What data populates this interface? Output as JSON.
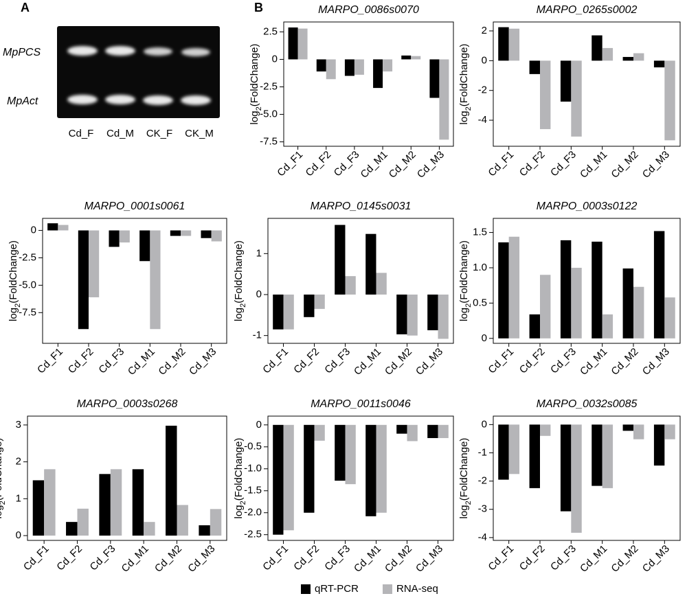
{
  "panel_a": {
    "label": "A",
    "genes": [
      "MpPCS",
      "MpAct"
    ],
    "lanes": [
      "Cd_F",
      "Cd_M",
      "CK_F",
      "CK_M"
    ]
  },
  "panel_b_label": "B",
  "chart_data": [
    {
      "type": "bar",
      "title": "MARPO_0086s0070",
      "ylabel": [
        "log",
        "2",
        "(FoldChange)"
      ],
      "categories": [
        "Cd_F1",
        "Cd_F2",
        "Cd_F3",
        "Cd_M1",
        "Cd_M2",
        "Cd_M3"
      ],
      "series": [
        {
          "color": "#000000",
          "values": [
            2.9,
            -1.1,
            -1.5,
            -2.6,
            0.35,
            -3.5
          ]
        },
        {
          "color": "#b5b5b8",
          "values": [
            2.8,
            -1.8,
            -1.4,
            -1.1,
            0.3,
            -7.3
          ]
        }
      ],
      "ylim": [
        -7.9,
        3.4
      ],
      "yticks": [
        2.5,
        0,
        -2.5,
        {
          "value": -5,
          "label": "-5.0"
        },
        -7.5
      ]
    },
    {
      "type": "bar",
      "title": "MARPO_0265s0002",
      "ylabel": [
        "log",
        "2",
        "(FoldChange)"
      ],
      "categories": [
        "Cd_F1",
        "Cd_F2",
        "Cd_F3",
        "Cd_M1",
        "Cd_M2",
        "Cd_M3"
      ],
      "series": [
        {
          "color": "#000000",
          "values": [
            2.25,
            -0.9,
            -2.75,
            1.7,
            0.25,
            -0.45
          ]
        },
        {
          "color": "#b5b5b8",
          "values": [
            2.15,
            -4.6,
            -5.1,
            0.85,
            0.5,
            -5.35
          ]
        }
      ],
      "ylim": [
        -5.75,
        2.6
      ],
      "yticks": [
        2,
        0,
        -2,
        -4
      ]
    },
    {
      "type": "bar",
      "title": "MARPO_0001s0061",
      "ylabel": [
        "log",
        "2",
        "(FoldChange)"
      ],
      "categories": [
        "Cd_F1",
        "Cd_F2",
        "Cd_F3",
        "Cd_M1",
        "Cd_M2",
        "Cd_M3"
      ],
      "series": [
        {
          "color": "#000000",
          "values": [
            0.65,
            -9.0,
            -1.5,
            -2.8,
            -0.5,
            -0.7
          ]
        },
        {
          "color": "#b5b5b8",
          "values": [
            0.5,
            -6.1,
            -1.1,
            -9.0,
            -0.5,
            -1.0
          ]
        }
      ],
      "ylim": [
        -10.3,
        1.1
      ],
      "yticks": [
        0,
        -2.5,
        {
          "value": -5,
          "label": "-5.0"
        },
        -7.5
      ]
    },
    {
      "type": "bar",
      "title": "MARPO_0145s0031",
      "ylabel": [
        "log",
        "2",
        "(FoldChange)"
      ],
      "categories": [
        "Cd_F1",
        "Cd_F2",
        "Cd_F3",
        "Cd_M1",
        "Cd_M2",
        "Cd_M3"
      ],
      "series": [
        {
          "color": "#000000",
          "values": [
            -0.85,
            -0.55,
            1.7,
            1.48,
            -0.97,
            -0.87
          ]
        },
        {
          "color": "#b5b5b8",
          "values": [
            -0.85,
            -0.35,
            0.45,
            0.53,
            -1.0,
            -1.08
          ]
        }
      ],
      "ylim": [
        -1.19,
        1.86
      ],
      "yticks": [
        1,
        0,
        -1
      ]
    },
    {
      "type": "bar",
      "title": "MARPO_0003s0122",
      "ylabel": [
        "log",
        "2",
        "(FoldChange)"
      ],
      "categories": [
        "Cd_F1",
        "Cd_F2",
        "Cd_F3",
        "Cd_M1",
        "Cd_M2",
        "Cd_M3"
      ],
      "series": [
        {
          "color": "#000000",
          "values": [
            1.36,
            0.34,
            1.39,
            1.37,
            0.99,
            1.52
          ]
        },
        {
          "color": "#b5b5b8",
          "values": [
            1.44,
            0.9,
            1.0,
            0.34,
            0.73,
            0.58
          ]
        }
      ],
      "ylim": [
        -0.07,
        1.7
      ],
      "yticks": [
        0,
        0.5,
        {
          "value": 1,
          "label": "1.0"
        },
        1.5
      ]
    },
    {
      "type": "bar",
      "title": "MARPO_0003s0268",
      "ylabel": [
        "log",
        "2",
        "(FoldChange)"
      ],
      "categories": [
        "Cd_F1",
        "Cd_F2",
        "Cd_F3",
        "Cd_M1",
        "Cd_M2",
        "Cd_M3"
      ],
      "series": [
        {
          "color": "#000000",
          "values": [
            1.5,
            0.37,
            1.67,
            1.8,
            2.98,
            0.28
          ]
        },
        {
          "color": "#b5b5b8",
          "values": [
            1.8,
            0.73,
            1.8,
            0.37,
            0.83,
            0.72
          ]
        }
      ],
      "ylim": [
        -0.13,
        3.24
      ],
      "yticks": [
        0,
        1,
        2,
        3
      ]
    },
    {
      "type": "bar",
      "title": "MARPO_0011s0046",
      "ylabel": [
        "log",
        "2",
        "(FoldChange)"
      ],
      "categories": [
        "Cd_F1",
        "Cd_F2",
        "Cd_F3",
        "Cd_M1",
        "Cd_M2",
        "Cd_M3"
      ],
      "series": [
        {
          "color": "#000000",
          "values": [
            -2.5,
            -2.0,
            -1.27,
            -2.08,
            -0.2,
            -0.3
          ]
        },
        {
          "color": "#b5b5b8",
          "values": [
            -2.4,
            -0.36,
            -1.35,
            -2.0,
            -0.37,
            -0.3
          ]
        }
      ],
      "ylim": [
        -2.63,
        0.2
      ],
      "yticks": [
        0,
        -0.5,
        {
          "value": -1,
          "label": "-1.0"
        },
        -1.5,
        {
          "value": -2,
          "label": "-2.0"
        },
        -2.5
      ]
    },
    {
      "type": "bar",
      "title": "MARPO_0032s0085",
      "ylabel": [
        "log",
        "2",
        "(FoldChange)"
      ],
      "categories": [
        "Cd_F1",
        "Cd_F2",
        "Cd_F3",
        "Cd_M1",
        "Cd_M2",
        "Cd_M3"
      ],
      "series": [
        {
          "name": "qRT-PCR",
          "color": "#000000",
          "values": [
            -1.95,
            -2.25,
            -3.07,
            -2.17,
            -0.22,
            -1.45
          ]
        },
        {
          "name": "RNA-seq",
          "color": "#b5b5b8",
          "values": [
            -1.75,
            -0.4,
            -3.83,
            -2.25,
            -0.52,
            -0.52
          ]
        }
      ],
      "ylim": [
        -4.1,
        0.3
      ],
      "yticks": [
        0,
        -1,
        -2,
        -3,
        -4
      ]
    }
  ]
}
